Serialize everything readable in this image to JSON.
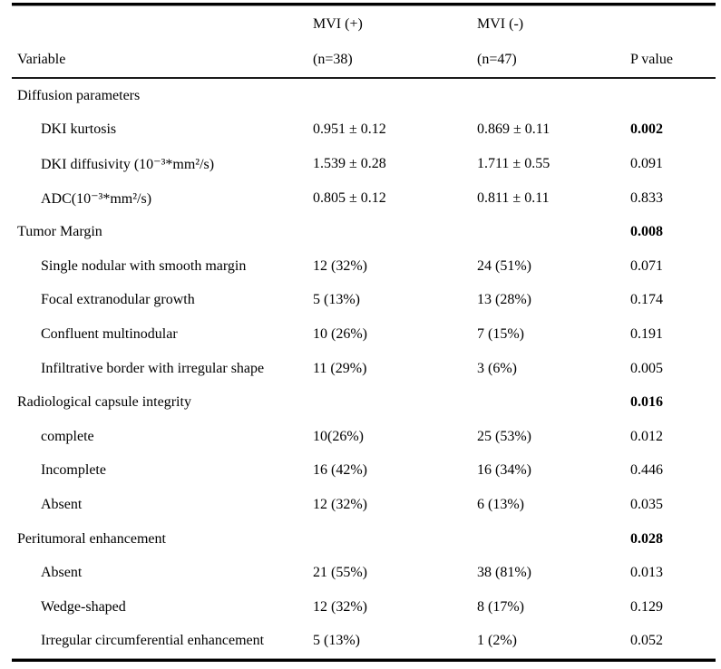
{
  "table": {
    "title_semantic": "Comparison of variables between MVI positive and MVI negative groups",
    "header": {
      "variable_label": "Variable",
      "mvi_pos_line1": "MVI (+)",
      "mvi_pos_line2": "(n=38)",
      "mvi_neg_line1": "MVI (-)",
      "mvi_neg_line2": "(n=47)",
      "p_value_label": "P value"
    },
    "rows": [
      {
        "label": "Diffusion parameters",
        "indent": false,
        "mvi_pos": "",
        "mvi_neg": "",
        "p": "",
        "p_bold": false
      },
      {
        "label": "DKI kurtosis",
        "indent": true,
        "mvi_pos": "0.951 ± 0.12",
        "mvi_neg": "0.869 ± 0.11",
        "p": "0.002",
        "p_bold": true
      },
      {
        "label": "DKI diffusivity (10⁻³*mm²/s)",
        "indent": true,
        "mvi_pos": "1.539 ± 0.28",
        "mvi_neg": "1.711 ± 0.55",
        "p": "0.091",
        "p_bold": false
      },
      {
        "label": "ADC(10⁻³*mm²/s)",
        "indent": true,
        "mvi_pos": "0.805 ± 0.12",
        "mvi_neg": "0.811 ± 0.11",
        "p": "0.833",
        "p_bold": false
      },
      {
        "label": "Tumor Margin",
        "indent": false,
        "mvi_pos": "",
        "mvi_neg": "",
        "p": "0.008",
        "p_bold": true
      },
      {
        "label": "Single nodular with smooth margin",
        "indent": true,
        "mvi_pos": "12 (32%)",
        "mvi_neg": "24 (51%)",
        "p": "0.071",
        "p_bold": false
      },
      {
        "label": "Focal extranodular growth",
        "indent": true,
        "mvi_pos": "5 (13%)",
        "mvi_neg": "13 (28%)",
        "p": "0.174",
        "p_bold": false
      },
      {
        "label": "Confluent multinodular",
        "indent": true,
        "mvi_pos": "10 (26%)",
        "mvi_neg": "7 (15%)",
        "p": "0.191",
        "p_bold": false
      },
      {
        "label": "Infiltrative border with irregular shape",
        "indent": true,
        "mvi_pos": "11 (29%)",
        "mvi_neg": "3 (6%)",
        "p": "0.005",
        "p_bold": false
      },
      {
        "label": "Radiological capsule integrity",
        "indent": false,
        "mvi_pos": "",
        "mvi_neg": "",
        "p": "0.016",
        "p_bold": true
      },
      {
        "label": "complete",
        "indent": true,
        "mvi_pos": "10(26%)",
        "mvi_neg": "25 (53%)",
        "p": "0.012",
        "p_bold": false
      },
      {
        "label": "Incomplete",
        "indent": true,
        "mvi_pos": "16 (42%)",
        "mvi_neg": "16 (34%)",
        "p": "0.446",
        "p_bold": false
      },
      {
        "label": "Absent",
        "indent": true,
        "mvi_pos": "12 (32%)",
        "mvi_neg": "6 (13%)",
        "p": "0.035",
        "p_bold": false
      },
      {
        "label": "Peritumoral enhancement",
        "indent": false,
        "mvi_pos": "",
        "mvi_neg": "",
        "p": "0.028",
        "p_bold": true
      },
      {
        "label": "Absent",
        "indent": true,
        "mvi_pos": "21 (55%)",
        "mvi_neg": "38 (81%)",
        "p": "0.013",
        "p_bold": false
      },
      {
        "label": "Wedge-shaped",
        "indent": true,
        "mvi_pos": "12 (32%)",
        "mvi_neg": "8 (17%)",
        "p": "0.129",
        "p_bold": false
      },
      {
        "label": "Irregular circumferential enhancement",
        "indent": true,
        "mvi_pos": "5 (13%)",
        "mvi_neg": "1 (2%)",
        "p": "0.052",
        "p_bold": false
      }
    ]
  }
}
